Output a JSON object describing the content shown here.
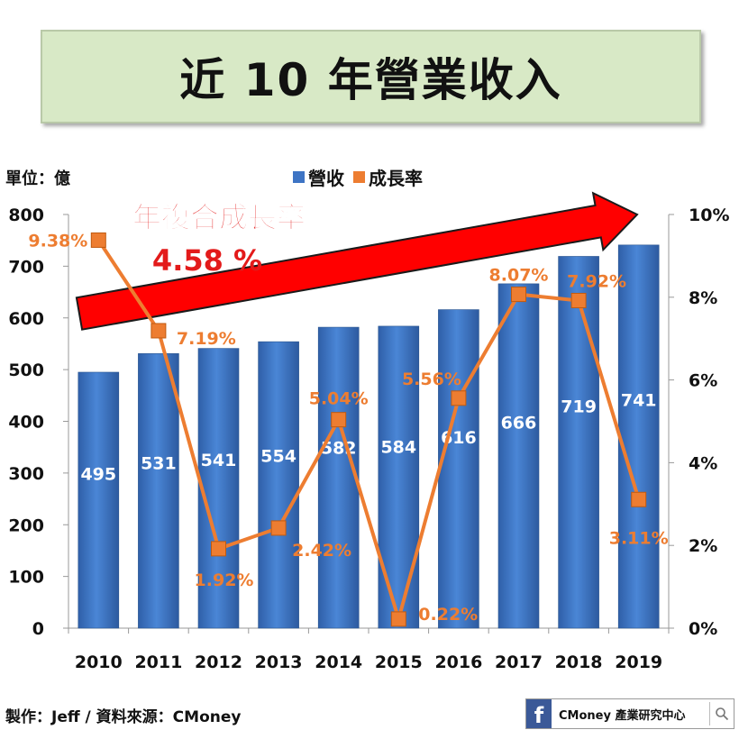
{
  "title": "近 10 年營業收入",
  "unit_label": "單位：億",
  "legend": {
    "revenue_label": "營收",
    "growth_label": "成長率"
  },
  "annotation": {
    "line1": "年複合成長率",
    "line2": "4.58 %"
  },
  "footer": "製作：Jeff / 資料來源：CMoney",
  "badge": {
    "logo": "f",
    "text": "CMoney 產業研究中心"
  },
  "colors": {
    "bar": "#3e74c4",
    "line": "#ed7d31",
    "arrow": "#ff0000",
    "annotation": "#e31a1a"
  },
  "chart_data": {
    "type": "bar",
    "categories": [
      "2010",
      "2011",
      "2012",
      "2013",
      "2014",
      "2015",
      "2016",
      "2017",
      "2018",
      "2019"
    ],
    "series": [
      {
        "name": "營收",
        "type": "bar",
        "axis": "left",
        "values": [
          495,
          531,
          541,
          554,
          582,
          584,
          616,
          666,
          719,
          741
        ],
        "labels": [
          "495",
          "531",
          "541",
          "554",
          "582",
          "584",
          "616",
          "666",
          "719",
          "741"
        ]
      },
      {
        "name": "成長率",
        "type": "line",
        "axis": "right",
        "values": [
          9.38,
          7.19,
          1.92,
          2.42,
          5.04,
          0.22,
          5.56,
          8.07,
          7.92,
          3.11
        ],
        "labels": [
          "9.38%",
          "7.19%",
          "1.92%",
          "2.42%",
          "5.04%",
          "0.22%",
          "5.56%",
          "8.07%",
          "7.92%",
          "3.11%"
        ]
      }
    ],
    "left_axis": {
      "ylim": [
        0,
        800
      ],
      "ticks": [
        "0",
        "100",
        "200",
        "300",
        "400",
        "500",
        "600",
        "700",
        "800"
      ]
    },
    "right_axis": {
      "ylim": [
        0,
        10
      ],
      "ticks": [
        "0%",
        "2%",
        "4%",
        "6%",
        "8%",
        "10%"
      ]
    },
    "grid": false,
    "legend_position": "top"
  }
}
